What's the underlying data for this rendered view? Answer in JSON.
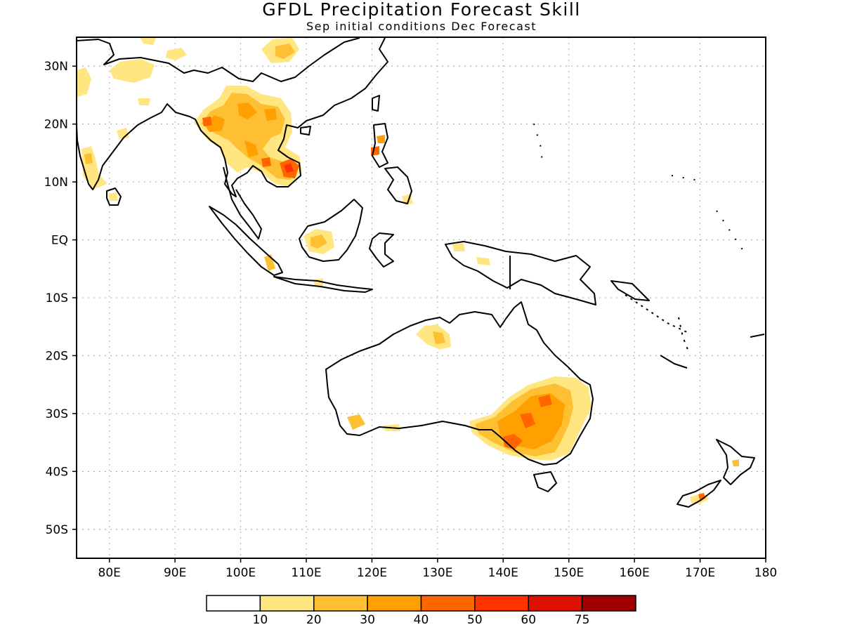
{
  "title": "GFDL Precipitation Forecast Skill",
  "subtitle": "Sep initial conditions  Dec Forecast",
  "map": {
    "lon_range": [
      75,
      180
    ],
    "lat_range": [
      -55,
      35
    ],
    "lon_ticks": [
      {
        "value": 80,
        "label": "80E"
      },
      {
        "value": 90,
        "label": "90E"
      },
      {
        "value": 100,
        "label": "100E"
      },
      {
        "value": 110,
        "label": "110E"
      },
      {
        "value": 120,
        "label": "120E"
      },
      {
        "value": 130,
        "label": "130E"
      },
      {
        "value": 140,
        "label": "140E"
      },
      {
        "value": 150,
        "label": "150E"
      },
      {
        "value": 160,
        "label": "160E"
      },
      {
        "value": 170,
        "label": "170E"
      },
      {
        "value": 180,
        "label": "180"
      }
    ],
    "lat_ticks": [
      {
        "value": 30,
        "label": "30N"
      },
      {
        "value": 20,
        "label": "20N"
      },
      {
        "value": 10,
        "label": "10N"
      },
      {
        "value": 0,
        "label": "EQ"
      },
      {
        "value": -10,
        "label": "10S"
      },
      {
        "value": -20,
        "label": "20S"
      },
      {
        "value": -30,
        "label": "30S"
      },
      {
        "value": -40,
        "label": "40S"
      },
      {
        "value": -50,
        "label": "50S"
      }
    ],
    "grid": true,
    "grid_style": "dotted"
  },
  "colorbar": {
    "labels": [
      "10",
      "20",
      "30",
      "40",
      "50",
      "60",
      "75"
    ],
    "colors": [
      "#ffffff",
      "#ffe680",
      "#ffbf33",
      "#ff9f00",
      "#ff6600",
      "#ff3300",
      "#dd1100",
      "#a00000"
    ]
  }
}
